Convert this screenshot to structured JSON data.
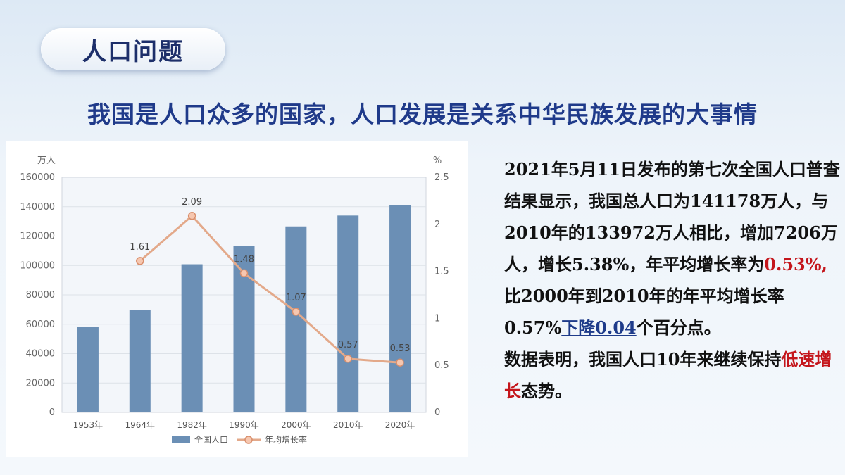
{
  "badge": {
    "title": "人口问题"
  },
  "headline": "我国是人口众多的国家，人口发展是关系中华民族发展的大事情",
  "chart_data": {
    "type": "bar",
    "categories": [
      "1953年",
      "1964年",
      "1982年",
      "1990年",
      "2000年",
      "2010年",
      "2020年"
    ],
    "series": [
      {
        "name": "全国人口",
        "type": "bar",
        "axis": "left",
        "values": [
          58260,
          69458,
          100818,
          113368,
          126583,
          133972,
          141178
        ],
        "color": "#6b8fb5"
      },
      {
        "name": "年均增长率",
        "type": "line",
        "axis": "right",
        "values": [
          null,
          1.61,
          2.09,
          1.48,
          1.07,
          0.57,
          0.53
        ],
        "labels": [
          "",
          "1.61",
          "2.09",
          "1.48",
          "1.07",
          "0.57",
          "0.53"
        ],
        "color": "#e3a98a"
      }
    ],
    "left_axis": {
      "unit": "万人",
      "ylim": [
        0,
        160000
      ],
      "ticks": [
        "0",
        "20000",
        "40000",
        "60000",
        "80000",
        "100000",
        "120000",
        "140000",
        "160000"
      ]
    },
    "right_axis": {
      "unit": "%",
      "ylim": [
        0,
        2.5
      ],
      "ticks": [
        "0",
        "0.5",
        "1",
        "1.5",
        "2",
        "2.5"
      ]
    },
    "grid": true,
    "legend": "bottom"
  },
  "body": {
    "p1_a": "2021年5月11日发布的第七次全国人口普查结果显示，我国总人口为141178万人，与2010年的133972万人相比，增加7206万人，增长5.38%，年平均增长率为",
    "p1_red": "0.53%,",
    "p1_b": "比2000年到2010年的年平均增长率0.57%",
    "p1_blue": "下降0.04",
    "p1_c": "个百分点。",
    "p2_a": "数据表明，我国人口10年来继续保持",
    "p2_red": "低速增长",
    "p2_b": "态势。"
  }
}
